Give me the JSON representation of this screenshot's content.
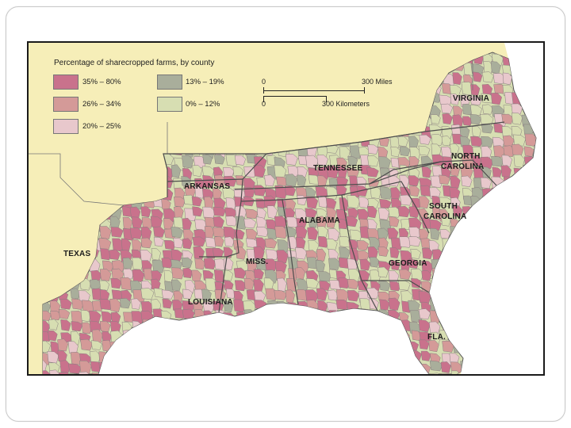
{
  "map": {
    "legend": {
      "title": "Percentage of sharecropped farms, by county",
      "items": [
        {
          "label": "35% – 80%",
          "color": "#c9728c"
        },
        {
          "label": "26% – 34%",
          "color": "#d49a98"
        },
        {
          "label": "20% – 25%",
          "color": "#e8c8cc"
        },
        {
          "label": "13% – 19%",
          "color": "#a9ae9b"
        },
        {
          "label": "0% – 12%",
          "color": "#d7deb2"
        }
      ]
    },
    "scale": {
      "miles_start": "0",
      "miles_end": "300 Miles",
      "km_start": "0",
      "km_end": "300 Kilometers"
    },
    "states": {
      "virginia": "VIRGINIA",
      "north_carolina_1": "NORTH",
      "north_carolina_2": "CAROLINA",
      "tennessee": "TENNESSEE",
      "arkansas": "ARKANSAS",
      "south_carolina_1": "SOUTH",
      "south_carolina_2": "CAROLINA",
      "alabama": "ALABAMA",
      "texas": "TEXAS",
      "miss": "MISS.",
      "georgia": "GEORGIA",
      "louisiana": "LOUISIANA",
      "fla": "FLA."
    },
    "colors": {
      "outside": "#f6eeb8",
      "water": "#ffffff",
      "border": "#555555"
    }
  }
}
